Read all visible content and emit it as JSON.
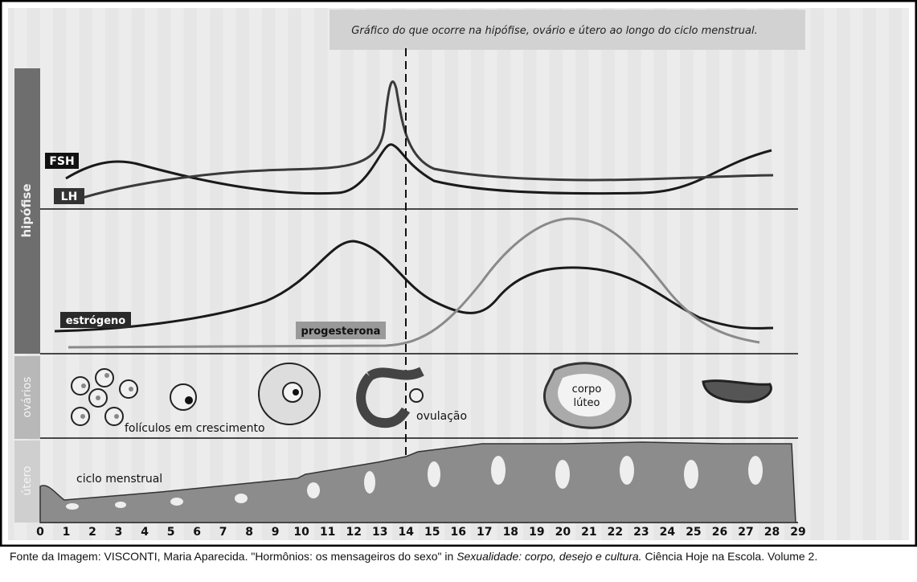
{
  "title": "Gráfico do que ocorre na hipófise, ovário e útero ao longo do ciclo menstrual.",
  "sections": {
    "pituitary": "hipófise",
    "ovaries": "ovários",
    "uterus": "útero"
  },
  "hormones": {
    "fsh": "FSH",
    "lh": "LH",
    "estrogen": "estrógeno",
    "progesterone": "progesterona"
  },
  "ovary_labels": {
    "follicles": "folículos em crescimento",
    "ovulation": "ovulação",
    "corpus_luteum": [
      "corpo",
      "lúteo"
    ]
  },
  "uterus_label": "ciclo menstrual",
  "days": [
    0,
    1,
    2,
    3,
    4,
    5,
    6,
    7,
    8,
    9,
    10,
    11,
    12,
    13,
    14,
    15,
    16,
    17,
    18,
    19,
    20,
    21,
    22,
    23,
    24,
    25,
    26,
    27,
    28,
    29
  ],
  "caption": {
    "prefix": "Fonte da Imagem: VISCONTI, Maria Aparecida. \"Hormônios: os mensageiros do sexo\" in ",
    "italic": "Sexualidade: corpo, desejo e cultura.",
    "suffix": " Ciência Hoje na Escola. Volume 2."
  }
}
